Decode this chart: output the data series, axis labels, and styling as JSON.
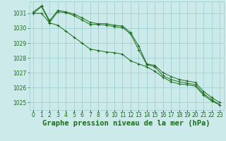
{
  "x": [
    0,
    1,
    2,
    3,
    4,
    5,
    6,
    7,
    8,
    9,
    10,
    11,
    12,
    13,
    14,
    15,
    16,
    17,
    18,
    19,
    20,
    21,
    22,
    23
  ],
  "series": [
    [
      1031.1,
      1031.5,
      1030.5,
      1031.2,
      1031.1,
      1030.95,
      1030.7,
      1030.4,
      1030.3,
      1030.3,
      1030.2,
      1030.15,
      1029.7,
      1028.8,
      1027.6,
      1027.5,
      1027.0,
      1026.75,
      1026.55,
      1026.45,
      1026.35,
      1025.75,
      1025.35,
      1025.0
    ],
    [
      1031.0,
      1031.45,
      1030.4,
      1031.1,
      1031.05,
      1030.85,
      1030.55,
      1030.25,
      1030.25,
      1030.2,
      1030.1,
      1030.05,
      1029.6,
      1028.55,
      1027.55,
      1027.4,
      1026.8,
      1026.55,
      1026.4,
      1026.3,
      1026.2,
      1025.6,
      1025.2,
      1024.85
    ],
    [
      1031.0,
      1031.0,
      1030.35,
      1030.2,
      1029.8,
      1029.4,
      1029.0,
      1028.6,
      1028.5,
      1028.4,
      1028.35,
      1028.25,
      1027.8,
      1027.6,
      1027.4,
      1027.1,
      1026.7,
      1026.4,
      1026.25,
      1026.2,
      1026.1,
      1025.5,
      1025.1,
      1024.85
    ]
  ],
  "line_color": "#1a6b1a",
  "marker": "+",
  "background_color": "#cceaea",
  "grid_color": "#99cccc",
  "ylabel_ticks": [
    1025,
    1026,
    1027,
    1028,
    1029,
    1030,
    1031
  ],
  "xlabel": "Graphe pression niveau de la mer (hPa)",
  "ylim": [
    1024.5,
    1031.8
  ],
  "xlim": [
    -0.5,
    23.5
  ],
  "tick_fontsize": 5.5,
  "xlabel_fontsize": 7.5,
  "label_color": "#1a6b1a"
}
